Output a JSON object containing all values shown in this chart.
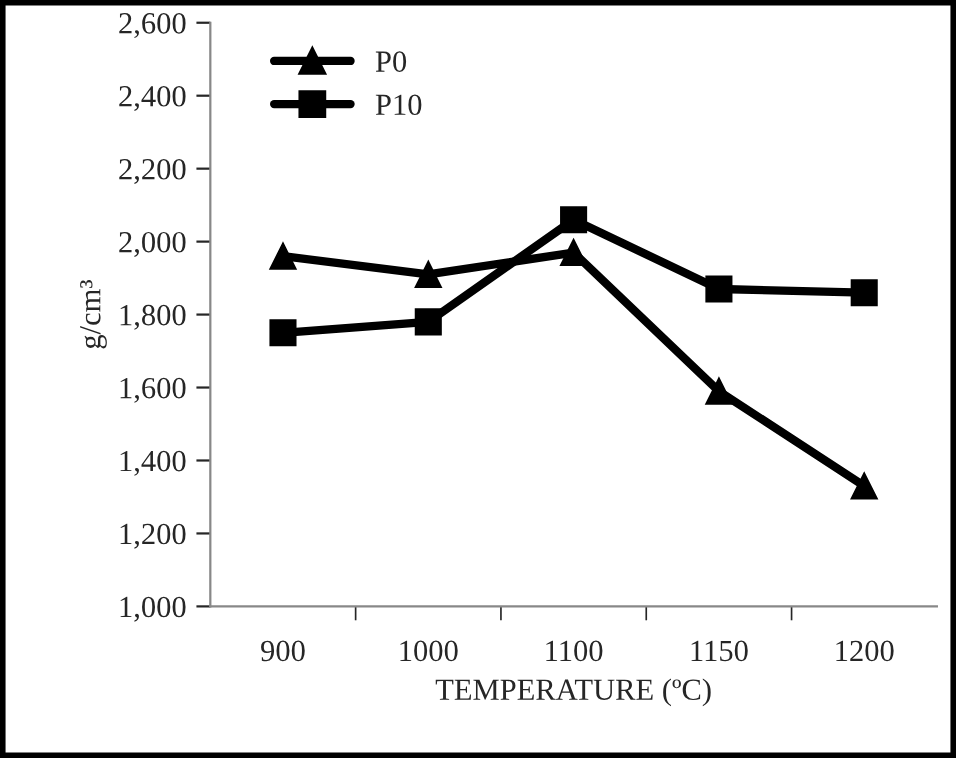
{
  "chart_data": {
    "type": "line",
    "xlabel": "TEMPERATURE (ºC)",
    "ylabel": "g/cm³",
    "categories": [
      "900",
      "1000",
      "1100",
      "1150",
      "1200"
    ],
    "series": [
      {
        "name": "P0",
        "color": "#000000",
        "marker": "triangle",
        "values": [
          1960,
          1910,
          1970,
          1590,
          1330
        ]
      },
      {
        "name": "P10",
        "color": "#000000",
        "marker": "square",
        "values": [
          1750,
          1780,
          2060,
          1870,
          1860
        ]
      }
    ],
    "ylim": [
      1000,
      2600
    ],
    "yticks": [
      {
        "value": 1000,
        "label": "1,000"
      },
      {
        "value": 1200,
        "label": "1,200"
      },
      {
        "value": 1400,
        "label": "1,400"
      },
      {
        "value": 1600,
        "label": "1,600"
      },
      {
        "value": 1800,
        "label": "1,800"
      },
      {
        "value": 2000,
        "label": "2,000"
      },
      {
        "value": 2200,
        "label": "2,200"
      },
      {
        "value": 2400,
        "label": "2,400"
      },
      {
        "value": 2600,
        "label": "2,600"
      }
    ],
    "grid": false,
    "legend": "top left",
    "line_style": "solid"
  }
}
